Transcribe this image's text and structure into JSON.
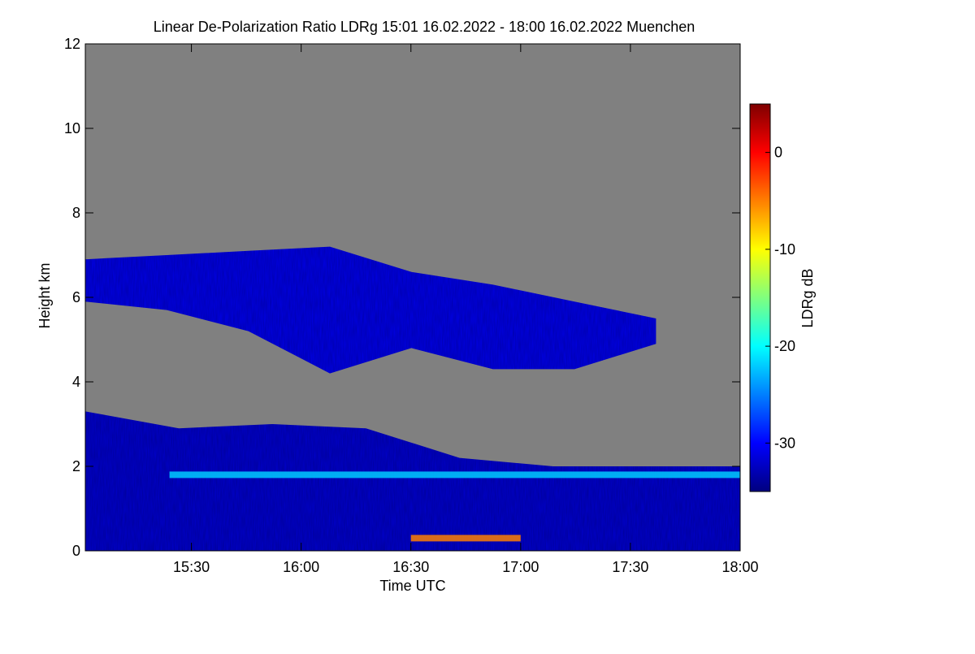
{
  "chart_data": {
    "type": "heatmap",
    "title": "Linear De-Polarization Ratio LDRg   15:01 16.02.2022 - 18:00 16.02.2022 Muenchen",
    "xlabel": "Time UTC",
    "ylabel": "Height km",
    "x_range_minutes_utc": [
      901,
      1080
    ],
    "y_range_km": [
      0,
      12
    ],
    "x_ticks": [
      {
        "label": "15:30",
        "minutes": 930
      },
      {
        "label": "16:00",
        "minutes": 960
      },
      {
        "label": "16:30",
        "minutes": 990
      },
      {
        "label": "17:00",
        "minutes": 1020
      },
      {
        "label": "17:30",
        "minutes": 1050
      },
      {
        "label": "18:00",
        "minutes": 1080
      }
    ],
    "y_ticks": [
      {
        "label": "0",
        "value": 0
      },
      {
        "label": "2",
        "value": 2
      },
      {
        "label": "4",
        "value": 4
      },
      {
        "label": "6",
        "value": 6
      },
      {
        "label": "8",
        "value": 8
      },
      {
        "label": "10",
        "value": 10
      },
      {
        "label": "12",
        "value": 12
      }
    ],
    "no_signal_color": "#808080",
    "colorbar": {
      "label": "LDRg dB",
      "range_db": [
        -35,
        5
      ],
      "ticks": [
        {
          "label": "0",
          "value": 0
        },
        {
          "label": "-10",
          "value": -10
        },
        {
          "label": "-20",
          "value": -20
        },
        {
          "label": "-30",
          "value": -30
        }
      ],
      "colormap": [
        "#00007f",
        "#0000ff",
        "#007fff",
        "#00ffff",
        "#7fff7f",
        "#ffff00",
        "#ff7f00",
        "#ff0000",
        "#7f0000"
      ]
    },
    "regions": [
      {
        "feature": "upper cirrus layer top edge",
        "t_start": 901,
        "t_end": 1057,
        "h_top": [
          6.9,
          7.0,
          7.1,
          7.2,
          6.6,
          6.3,
          5.9,
          5.5
        ],
        "h_bottom": [
          5.9,
          5.7,
          5.2,
          4.2,
          4.8,
          4.3,
          4.3,
          4.9
        ],
        "ldr_db": -31
      },
      {
        "feature": "lower boundary layer",
        "t_start": 901,
        "t_end": 1080,
        "h_top": [
          3.3,
          2.9,
          3.0,
          2.9,
          2.2,
          2.0,
          2.0,
          2.0
        ],
        "h_bottom": [
          0,
          0,
          0,
          0,
          0,
          0,
          0,
          0
        ],
        "ldr_db": -32
      },
      {
        "feature": "depolarizing layer at 1.8 km",
        "t_start": 924,
        "t_end": 1080,
        "height_km": 1.8,
        "ldr_db": -22
      },
      {
        "feature": "aerosol band near ground",
        "t_start": 990,
        "t_end": 1020,
        "height_km": 0.3,
        "ldr_db": -5
      }
    ]
  }
}
